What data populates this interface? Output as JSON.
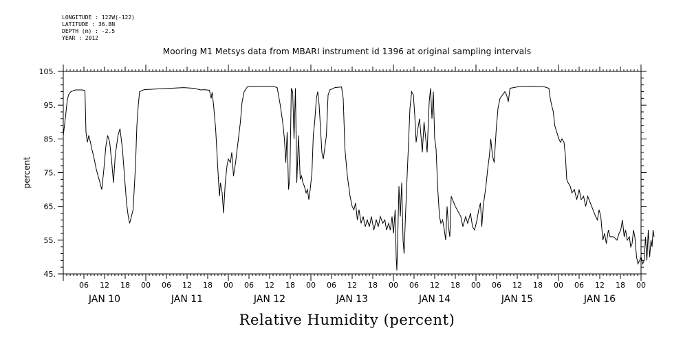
{
  "header": {
    "lines": [
      "LONGITUDE : 122W(-122)",
      "LATITUDE : 36.8N",
      "DEPTH (m) : -2.5",
      "YEAR : 2012"
    ]
  },
  "chart_data": {
    "type": "line",
    "title": "Mooring M1 Metsys data from MBARI instrument id 1396 at original sampling intervals",
    "xlabel": "Relative Humidity (percent)",
    "ylabel": "percent",
    "ylim": [
      45,
      105
    ],
    "yticks": [
      45,
      55,
      65,
      75,
      85,
      95,
      105
    ],
    "ytick_labels": [
      "45.",
      "55.",
      "65.",
      "75.",
      "85.",
      "95.",
      "105."
    ],
    "xlim_hours": [
      0,
      168
    ],
    "x_hour_tick_labels": [
      "06",
      "12",
      "18",
      "00"
    ],
    "day_labels": [
      "JAN 10",
      "JAN 11",
      "JAN 12",
      "JAN 13",
      "JAN 14",
      "JAN 15",
      "JAN 16"
    ],
    "series": [
      {
        "color": "#000000",
        "points": [
          [
            0.0,
            86
          ],
          [
            0.7,
            92
          ],
          [
            1.1,
            96
          ],
          [
            1.5,
            98
          ],
          [
            2.2,
            99
          ],
          [
            3.5,
            99.5
          ],
          [
            4.8,
            99.5
          ],
          [
            5.6,
            99.5
          ],
          [
            6.3,
            99.3
          ],
          [
            6.6,
            87
          ],
          [
            7.0,
            84
          ],
          [
            7.4,
            86
          ],
          [
            7.9,
            84
          ],
          [
            8.3,
            82
          ],
          [
            8.8,
            80
          ],
          [
            9.6,
            76
          ],
          [
            10.4,
            73
          ],
          [
            11.2,
            70
          ],
          [
            11.8,
            76
          ],
          [
            12.4,
            83
          ],
          [
            12.9,
            86
          ],
          [
            13.5,
            84
          ],
          [
            14.1,
            78
          ],
          [
            14.6,
            72
          ],
          [
            15.1,
            80
          ],
          [
            15.9,
            86
          ],
          [
            16.5,
            88
          ],
          [
            17.2,
            82
          ],
          [
            17.8,
            74
          ],
          [
            18.4,
            66
          ],
          [
            18.9,
            62
          ],
          [
            19.3,
            60
          ],
          [
            19.8,
            62
          ],
          [
            20.3,
            64
          ],
          [
            21.0,
            77
          ],
          [
            21.4,
            89
          ],
          [
            21.8,
            95
          ],
          [
            22.2,
            99
          ],
          [
            23.5,
            99.6
          ],
          [
            27,
            99.8
          ],
          [
            31,
            100
          ],
          [
            35,
            100.2
          ],
          [
            38,
            100
          ],
          [
            40,
            99.5
          ],
          [
            41,
            99.6
          ],
          [
            42.5,
            99.4
          ],
          [
            43,
            97
          ],
          [
            43.3,
            98.8
          ],
          [
            43.7,
            95
          ],
          [
            44.3,
            88
          ],
          [
            44.9,
            77
          ],
          [
            45.4,
            68
          ],
          [
            45.7,
            72
          ],
          [
            46.2,
            69
          ],
          [
            46.6,
            63
          ],
          [
            47.1,
            72
          ],
          [
            47.6,
            77
          ],
          [
            48.0,
            79
          ],
          [
            48.6,
            78
          ],
          [
            49.0,
            81
          ],
          [
            49.5,
            74
          ],
          [
            50.1,
            78
          ],
          [
            50.8,
            84
          ],
          [
            51.5,
            90
          ],
          [
            52.0,
            96
          ],
          [
            52.6,
            99
          ],
          [
            53.5,
            100.4
          ],
          [
            57,
            100.6
          ],
          [
            61,
            100.6
          ],
          [
            62.2,
            100.2
          ],
          [
            63.1,
            95
          ],
          [
            63.8,
            90
          ],
          [
            64.3,
            85
          ],
          [
            64.7,
            78
          ],
          [
            65.1,
            87
          ],
          [
            65.5,
            70
          ],
          [
            65.9,
            74
          ],
          [
            66.3,
            100
          ],
          [
            66.7,
            99
          ],
          [
            67.1,
            85
          ],
          [
            67.5,
            100
          ],
          [
            67.9,
            72
          ],
          [
            68.4,
            86
          ],
          [
            68.9,
            73
          ],
          [
            69.3,
            74
          ],
          [
            69.7,
            72
          ],
          [
            70.1,
            71
          ],
          [
            70.6,
            69
          ],
          [
            71.0,
            70
          ],
          [
            71.4,
            67
          ],
          [
            71.8,
            70
          ],
          [
            72.3,
            75
          ],
          [
            72.7,
            86
          ],
          [
            73.1,
            90
          ],
          [
            73.6,
            97
          ],
          [
            74.0,
            99
          ],
          [
            74.4,
            95
          ],
          [
            74.8,
            88
          ],
          [
            75.2,
            81
          ],
          [
            75.6,
            79
          ],
          [
            76.0,
            82
          ],
          [
            76.5,
            86
          ],
          [
            77.0,
            98
          ],
          [
            77.5,
            99.5
          ],
          [
            79,
            100.2
          ],
          [
            80.9,
            100.4
          ],
          [
            81.4,
            97
          ],
          [
            81.9,
            82
          ],
          [
            82.6,
            74
          ],
          [
            83.4,
            68
          ],
          [
            84.0,
            65
          ],
          [
            84.5,
            64
          ],
          [
            85.0,
            66
          ],
          [
            85.5,
            61
          ],
          [
            86.0,
            64
          ],
          [
            86.6,
            60
          ],
          [
            87.2,
            62
          ],
          [
            87.8,
            59
          ],
          [
            88.4,
            61
          ],
          [
            89,
            59
          ],
          [
            89.6,
            62
          ],
          [
            90.3,
            58
          ],
          [
            91.0,
            61
          ],
          [
            91.6,
            59
          ],
          [
            92.2,
            62
          ],
          [
            92.9,
            60
          ],
          [
            93.5,
            61
          ],
          [
            94,
            58
          ],
          [
            94.6,
            60
          ],
          [
            95.1,
            58
          ],
          [
            95.6,
            62
          ],
          [
            96.0,
            57
          ],
          [
            96.5,
            64
          ],
          [
            96.8,
            50
          ],
          [
            97.0,
            46
          ],
          [
            97.3,
            58
          ],
          [
            97.6,
            71
          ],
          [
            98.0,
            62
          ],
          [
            98.4,
            72
          ],
          [
            98.8,
            55
          ],
          [
            99.1,
            51
          ],
          [
            99.5,
            62
          ],
          [
            99.9,
            72
          ],
          [
            100.4,
            84
          ],
          [
            100.8,
            94
          ],
          [
            101.3,
            99
          ],
          [
            101.8,
            98
          ],
          [
            102.2,
            92
          ],
          [
            102.6,
            84
          ],
          [
            103.1,
            88
          ],
          [
            103.6,
            91
          ],
          [
            104.0,
            86
          ],
          [
            104.4,
            81
          ],
          [
            104.9,
            90
          ],
          [
            105.4,
            85
          ],
          [
            105.8,
            81
          ],
          [
            106.4,
            96
          ],
          [
            106.8,
            100
          ],
          [
            107.2,
            91
          ],
          [
            107.6,
            99
          ],
          [
            108.0,
            85
          ],
          [
            108.4,
            82
          ],
          [
            108.9,
            70
          ],
          [
            109.4,
            62
          ],
          [
            109.8,
            60
          ],
          [
            110.3,
            61
          ],
          [
            110.8,
            58
          ],
          [
            111.2,
            55
          ],
          [
            111.6,
            65
          ],
          [
            112.0,
            59
          ],
          [
            112.4,
            56
          ],
          [
            112.8,
            68
          ],
          [
            114.0,
            65
          ],
          [
            115.6,
            62
          ],
          [
            116.2,
            59
          ],
          [
            117.0,
            62
          ],
          [
            117.6,
            60
          ],
          [
            118.4,
            63
          ],
          [
            119.0,
            59
          ],
          [
            119.6,
            58
          ],
          [
            120.3,
            61
          ],
          [
            120.8,
            64
          ],
          [
            121.3,
            66
          ],
          [
            121.7,
            59
          ],
          [
            122.1,
            65
          ],
          [
            122.5,
            68
          ],
          [
            122.9,
            71
          ],
          [
            123.4,
            76
          ],
          [
            123.9,
            80
          ],
          [
            124.3,
            85
          ],
          [
            124.8,
            80
          ],
          [
            125.3,
            78
          ],
          [
            125.9,
            88
          ],
          [
            126.4,
            94
          ],
          [
            127.0,
            97
          ],
          [
            127.7,
            98
          ],
          [
            128.4,
            99
          ],
          [
            128.9,
            98
          ],
          [
            129.4,
            96
          ],
          [
            129.9,
            100
          ],
          [
            132,
            100.4
          ],
          [
            136,
            100.6
          ],
          [
            140,
            100.4
          ],
          [
            141.2,
            100
          ],
          [
            141.6,
            97
          ],
          [
            142.0,
            95
          ],
          [
            142.5,
            93
          ],
          [
            142.9,
            89
          ],
          [
            143.5,
            87
          ],
          [
            144.1,
            85
          ],
          [
            144.6,
            84
          ],
          [
            145.0,
            85
          ],
          [
            145.6,
            84
          ],
          [
            146.0,
            80
          ],
          [
            146.4,
            73
          ],
          [
            146.8,
            72
          ],
          [
            147.4,
            71
          ],
          [
            147.9,
            69
          ],
          [
            148.6,
            70
          ],
          [
            149.3,
            67
          ],
          [
            150.0,
            70
          ],
          [
            150.6,
            67
          ],
          [
            151.3,
            68
          ],
          [
            151.9,
            65
          ],
          [
            152.5,
            68
          ],
          [
            154.8,
            62
          ],
          [
            155.3,
            61
          ],
          [
            155.8,
            64
          ],
          [
            156.3,
            62
          ],
          [
            156.9,
            55
          ],
          [
            157.4,
            57
          ],
          [
            157.9,
            54
          ],
          [
            158.5,
            58
          ],
          [
            159.0,
            56
          ],
          [
            160.0,
            56
          ],
          [
            161.0,
            55
          ],
          [
            161.6,
            57
          ],
          [
            162.1,
            58
          ],
          [
            162.6,
            61
          ],
          [
            163.1,
            56
          ],
          [
            163.5,
            58
          ],
          [
            164.0,
            55
          ],
          [
            164.6,
            56
          ],
          [
            165.0,
            53
          ],
          [
            165.4,
            54
          ],
          [
            165.8,
            58
          ],
          [
            166.2,
            56
          ],
          [
            166.7,
            50
          ],
          [
            167.1,
            48
          ],
          [
            167.6,
            49
          ],
          [
            168.0,
            50
          ],
          [
            168.5,
            48
          ],
          [
            168.9,
            49
          ],
          [
            169.3,
            56
          ],
          [
            169.7,
            49
          ],
          [
            170.1,
            58
          ],
          [
            170.5,
            50
          ],
          [
            170.9,
            55
          ],
          [
            171.2,
            53
          ],
          [
            171.5,
            58
          ],
          [
            171.8,
            56
          ]
        ]
      }
    ]
  }
}
